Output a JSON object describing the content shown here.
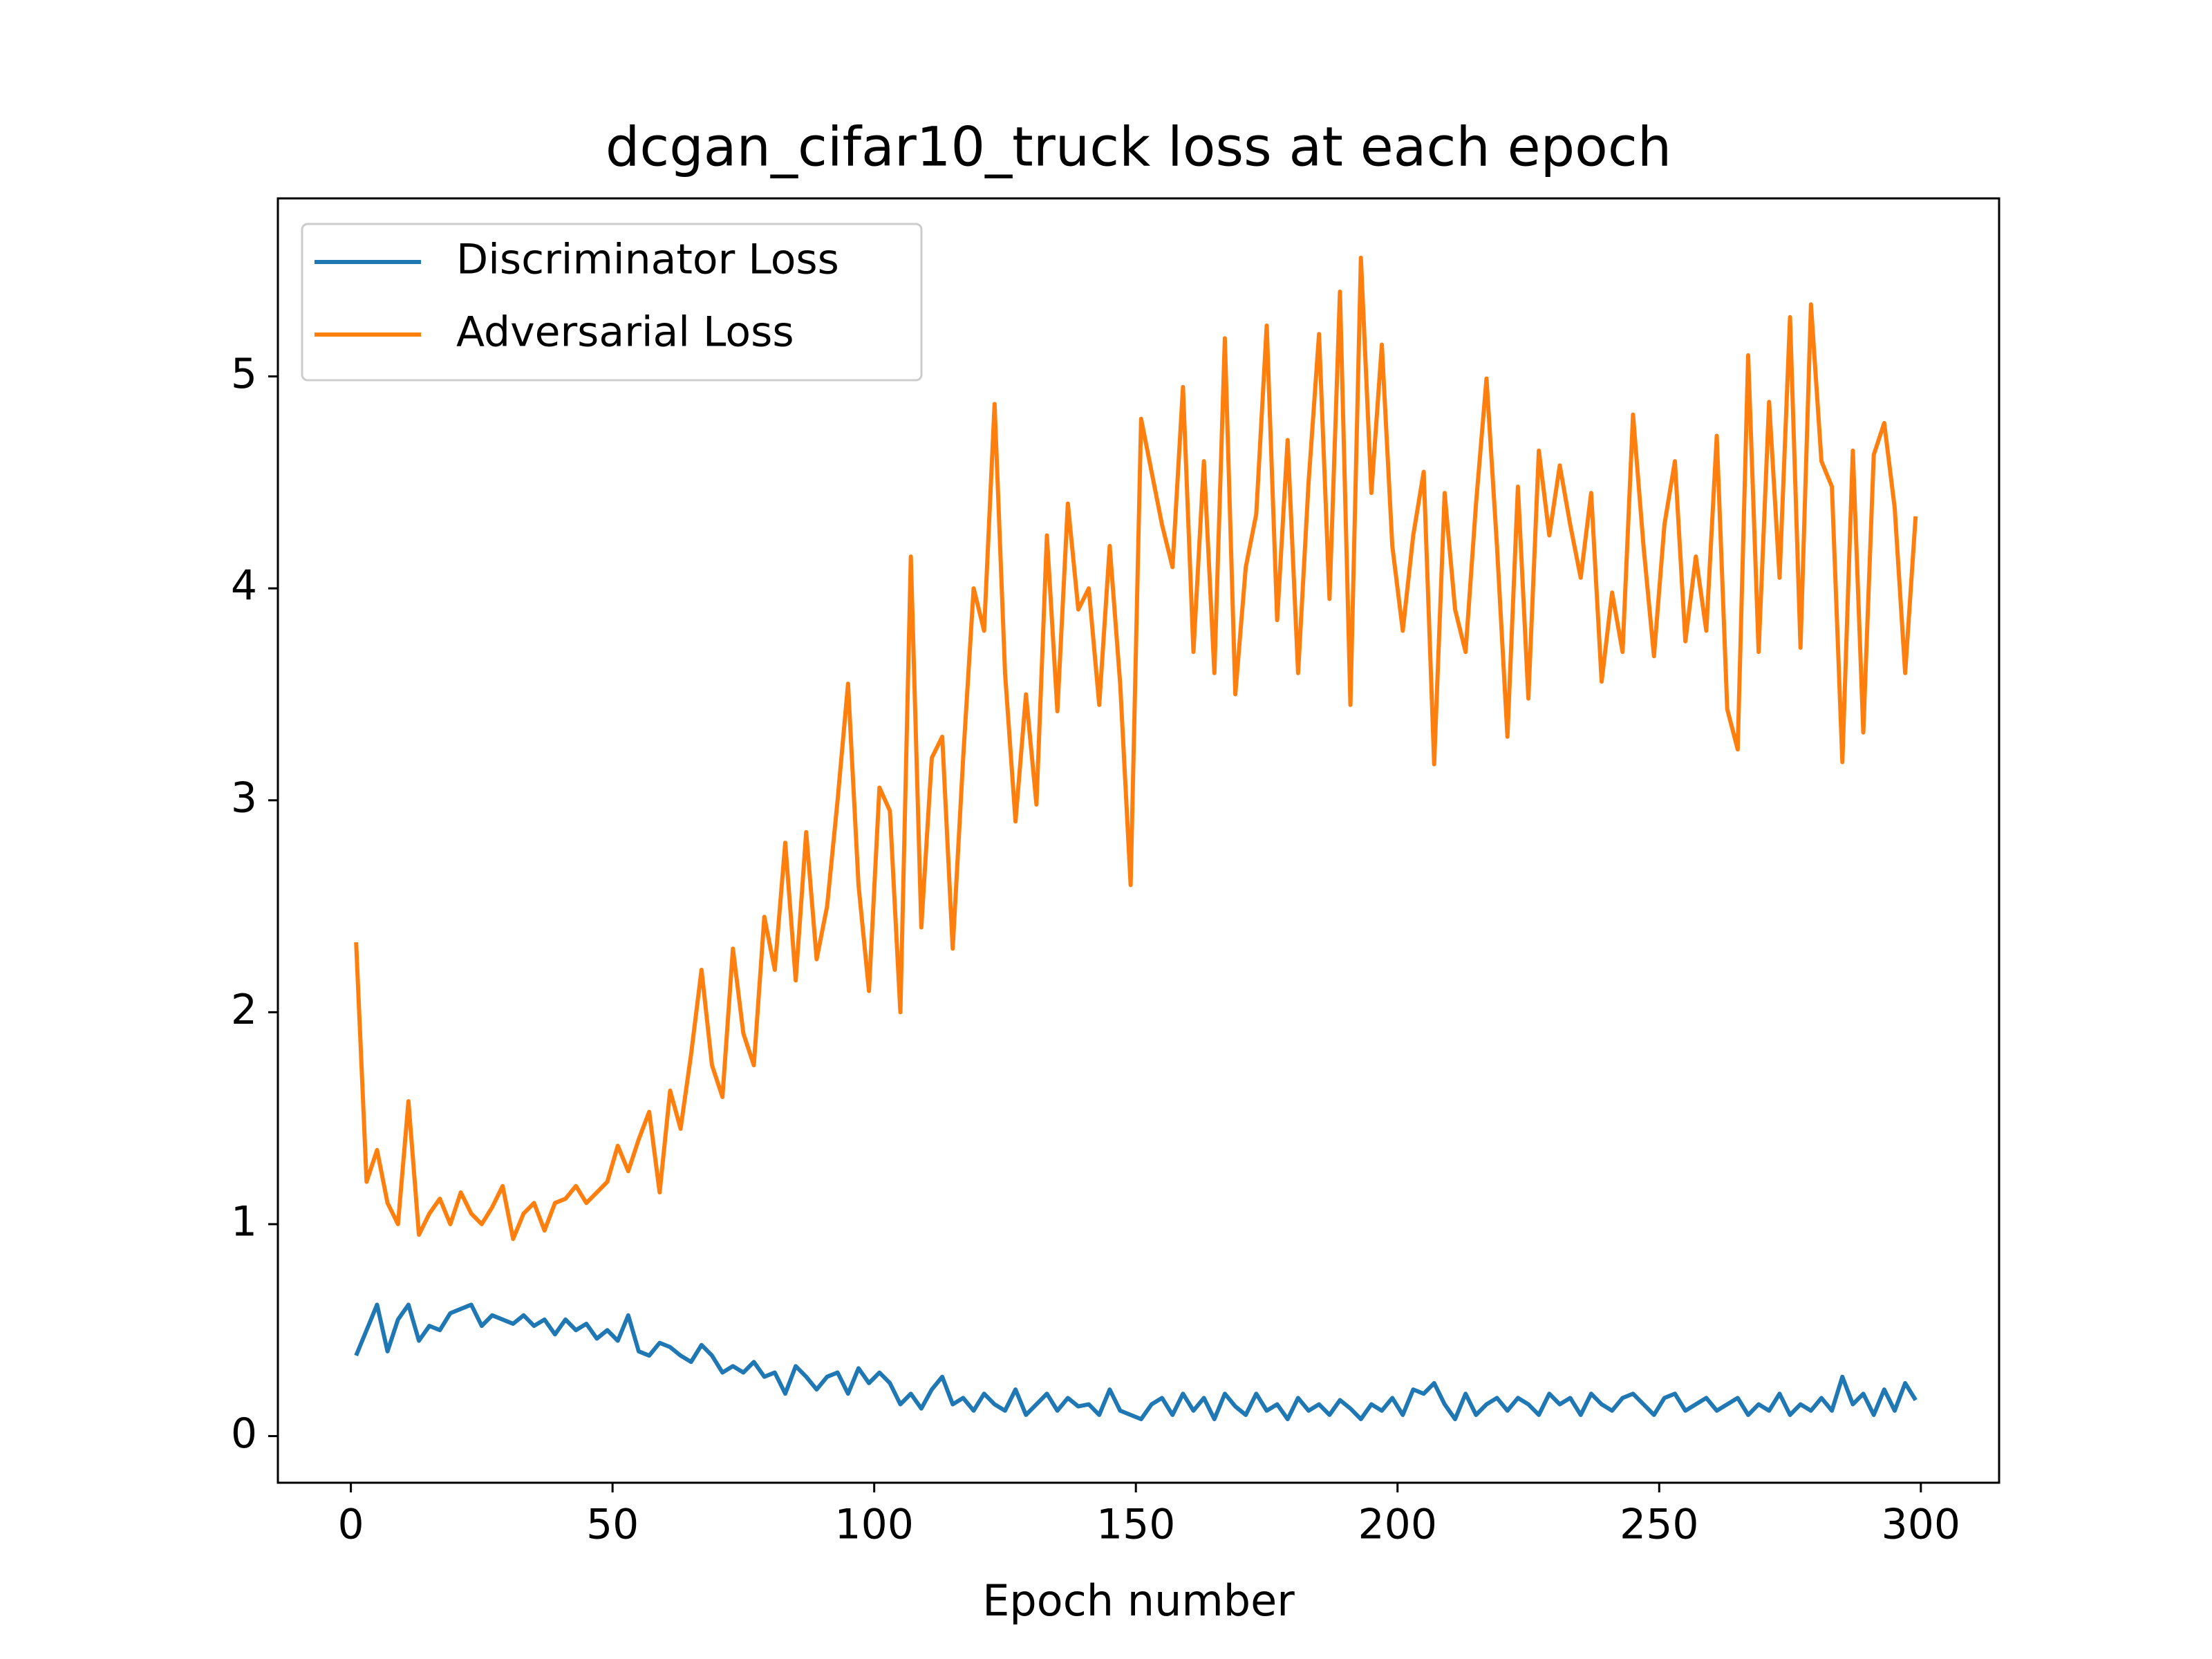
{
  "chart_data": {
    "type": "line",
    "title": "dcgan_cifar10_truck loss at each epoch",
    "x_label": "Epoch number",
    "x": [
      1,
      3,
      5,
      7,
      9,
      11,
      13,
      15,
      17,
      19,
      21,
      23,
      25,
      27,
      29,
      31,
      33,
      35,
      37,
      39,
      41,
      43,
      45,
      47,
      49,
      51,
      53,
      55,
      57,
      59,
      61,
      63,
      65,
      67,
      69,
      71,
      73,
      75,
      77,
      79,
      81,
      83,
      85,
      87,
      89,
      91,
      93,
      95,
      97,
      99,
      101,
      103,
      105,
      107,
      109,
      111,
      113,
      115,
      117,
      119,
      121,
      123,
      125,
      127,
      129,
      131,
      133,
      135,
      137,
      139,
      141,
      143,
      145,
      147,
      149,
      151,
      153,
      155,
      157,
      159,
      161,
      163,
      165,
      167,
      169,
      171,
      173,
      175,
      177,
      179,
      181,
      183,
      185,
      187,
      189,
      191,
      193,
      195,
      197,
      199,
      201,
      203,
      205,
      207,
      209,
      211,
      213,
      215,
      217,
      219,
      221,
      223,
      225,
      227,
      229,
      231,
      233,
      235,
      237,
      239,
      241,
      243,
      245,
      247,
      249,
      251,
      253,
      255,
      257,
      259,
      261,
      263,
      265,
      267,
      269,
      271,
      273,
      275,
      277,
      279,
      281,
      283,
      285,
      287,
      289,
      291,
      293,
      295,
      297,
      299
    ],
    "series": [
      {
        "name": "Discriminator Loss",
        "color": "#1f77b4",
        "values": [
          0.38,
          0.5,
          0.62,
          0.4,
          0.55,
          0.62,
          0.45,
          0.52,
          0.5,
          0.58,
          0.6,
          0.62,
          0.52,
          0.57,
          0.55,
          0.53,
          0.57,
          0.52,
          0.55,
          0.48,
          0.55,
          0.5,
          0.53,
          0.46,
          0.5,
          0.45,
          0.57,
          0.4,
          0.38,
          0.44,
          0.42,
          0.38,
          0.35,
          0.43,
          0.38,
          0.3,
          0.33,
          0.3,
          0.35,
          0.28,
          0.3,
          0.2,
          0.33,
          0.28,
          0.22,
          0.28,
          0.3,
          0.2,
          0.32,
          0.25,
          0.3,
          0.25,
          0.15,
          0.2,
          0.13,
          0.22,
          0.28,
          0.15,
          0.18,
          0.12,
          0.2,
          0.15,
          0.12,
          0.22,
          0.1,
          0.15,
          0.2,
          0.12,
          0.18,
          0.14,
          0.15,
          0.1,
          0.22,
          0.12,
          0.1,
          0.08,
          0.15,
          0.18,
          0.1,
          0.2,
          0.12,
          0.18,
          0.08,
          0.2,
          0.14,
          0.1,
          0.2,
          0.12,
          0.15,
          0.08,
          0.18,
          0.12,
          0.15,
          0.1,
          0.17,
          0.13,
          0.08,
          0.15,
          0.12,
          0.18,
          0.1,
          0.22,
          0.2,
          0.25,
          0.15,
          0.08,
          0.2,
          0.1,
          0.15,
          0.18,
          0.12,
          0.18,
          0.15,
          0.1,
          0.2,
          0.15,
          0.18,
          0.1,
          0.2,
          0.15,
          0.12,
          0.18,
          0.2,
          0.15,
          0.1,
          0.18,
          0.2,
          0.12,
          0.15,
          0.18,
          0.12,
          0.15,
          0.18,
          0.1,
          0.15,
          0.12,
          0.2,
          0.1,
          0.15,
          0.12,
          0.18,
          0.12,
          0.28,
          0.15,
          0.2,
          0.1,
          0.22,
          0.12,
          0.25,
          0.17
        ]
      },
      {
        "name": "Adversarial Loss",
        "color": "#ff7f0e",
        "values": [
          2.33,
          1.2,
          1.35,
          1.1,
          1.0,
          1.58,
          0.95,
          1.05,
          1.12,
          1.0,
          1.15,
          1.05,
          1.0,
          1.08,
          1.18,
          0.93,
          1.05,
          1.1,
          0.97,
          1.1,
          1.12,
          1.18,
          1.1,
          1.15,
          1.2,
          1.37,
          1.25,
          1.4,
          1.53,
          1.15,
          1.63,
          1.45,
          1.8,
          2.2,
          1.75,
          1.6,
          2.3,
          1.9,
          1.75,
          2.45,
          2.2,
          2.8,
          2.15,
          2.85,
          2.25,
          2.5,
          3.0,
          3.55,
          2.6,
          2.1,
          3.06,
          2.95,
          2.0,
          4.15,
          2.4,
          3.2,
          3.3,
          2.3,
          3.2,
          4.0,
          3.8,
          4.87,
          3.6,
          2.9,
          3.5,
          2.98,
          4.25,
          3.42,
          4.4,
          3.9,
          4.0,
          3.45,
          4.2,
          3.55,
          2.6,
          4.8,
          4.55,
          4.3,
          4.1,
          4.95,
          3.7,
          4.6,
          3.6,
          5.18,
          3.5,
          4.1,
          4.35,
          5.24,
          3.85,
          4.7,
          3.6,
          4.5,
          5.2,
          3.95,
          5.4,
          3.45,
          5.56,
          4.45,
          5.15,
          4.2,
          3.8,
          4.25,
          4.55,
          3.17,
          4.45,
          3.9,
          3.7,
          4.4,
          4.99,
          4.2,
          3.3,
          4.48,
          3.48,
          4.65,
          4.25,
          4.58,
          4.3,
          4.05,
          4.45,
          3.56,
          3.98,
          3.7,
          4.82,
          4.2,
          3.68,
          4.3,
          4.6,
          3.75,
          4.15,
          3.8,
          4.72,
          3.43,
          3.24,
          5.1,
          3.7,
          4.88,
          4.05,
          5.28,
          3.72,
          5.34,
          4.6,
          4.48,
          3.18,
          4.65,
          3.32,
          4.63,
          4.78,
          4.38,
          3.6,
          4.34
        ]
      }
    ],
    "xlim": [
      -13.95,
      314.95
    ],
    "xticks": [
      0,
      50,
      100,
      150,
      200,
      250,
      300
    ],
    "ylim": [
      -0.22,
      5.84
    ],
    "yticks": [
      0,
      1,
      2,
      3,
      4,
      5
    ],
    "legend": "upper left"
  }
}
